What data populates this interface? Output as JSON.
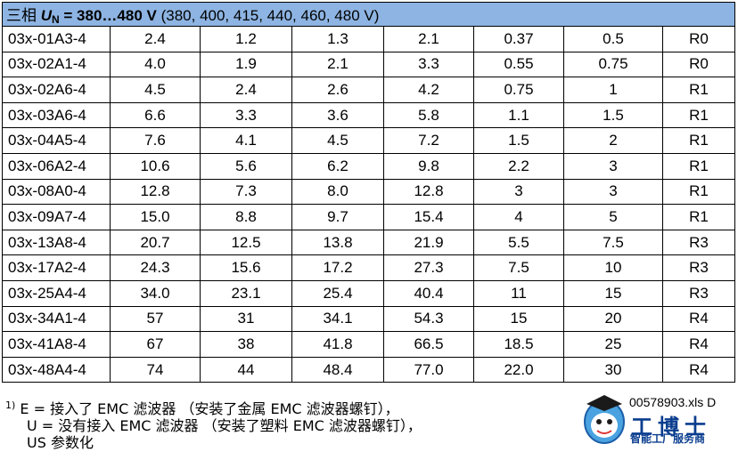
{
  "header": {
    "phase": "三相",
    "symbol": "U",
    "subscript": "N",
    "range": " = 380…480 V",
    "values": "(380, 400, 415, 440, 460, 480 V)"
  },
  "rows": [
    [
      "03x-01A3-4",
      "2.4",
      "1.2",
      "1.3",
      "2.1",
      "0.37",
      "0.5",
      "R0"
    ],
    [
      "03x-02A1-4",
      "4.0",
      "1.9",
      "2.1",
      "3.3",
      "0.55",
      "0.75",
      "R0"
    ],
    [
      "03x-02A6-4",
      "4.5",
      "2.4",
      "2.6",
      "4.2",
      "0.75",
      "1",
      "R1"
    ],
    [
      "03x-03A6-4",
      "6.6",
      "3.3",
      "3.6",
      "5.8",
      "1.1",
      "1.5",
      "R1"
    ],
    [
      "03x-04A5-4",
      "7.6",
      "4.1",
      "4.5",
      "7.2",
      "1.5",
      "2",
      "R1"
    ],
    [
      "03x-06A2-4",
      "10.6",
      "5.6",
      "6.2",
      "9.8",
      "2.2",
      "3",
      "R1"
    ],
    [
      "03x-08A0-4",
      "12.8",
      "7.3",
      "8.0",
      "12.8",
      "3",
      "3",
      "R1"
    ],
    [
      "03x-09A7-4",
      "15.0",
      "8.8",
      "9.7",
      "15.4",
      "4",
      "5",
      "R1"
    ],
    [
      "03x-13A8-4",
      "20.7",
      "12.5",
      "13.8",
      "21.9",
      "5.5",
      "7.5",
      "R3"
    ],
    [
      "03x-17A2-4",
      "24.3",
      "15.6",
      "17.2",
      "27.3",
      "7.5",
      "10",
      "R3"
    ],
    [
      "03x-25A4-4",
      "34.0",
      "23.1",
      "25.4",
      "40.4",
      "11",
      "15",
      "R3"
    ],
    [
      "03x-34A1-4",
      "57",
      "31",
      "34.1",
      "54.3",
      "15",
      "20",
      "R4"
    ],
    [
      "03x-41A8-4",
      "67",
      "38",
      "41.8",
      "66.5",
      "18.5",
      "25",
      "R4"
    ],
    [
      "03x-48A4-4",
      "74",
      "44",
      "48.4",
      "77.0",
      "22.0",
      "30",
      "R4"
    ]
  ],
  "notes": {
    "marker": "1)",
    "line1": "E = 接入了 EMC 滤波器 （安装了金属 EMC 滤波器螺钉），",
    "line2": "U = 没有接入 EMC 滤波器 （安装了塑料 EMC 滤波器螺钉），",
    "line3": "US 参数化"
  },
  "doc_ref": "00578903.xls D",
  "watermark": {
    "title": "工博士",
    "subtitle": "智能工厂服务商"
  }
}
